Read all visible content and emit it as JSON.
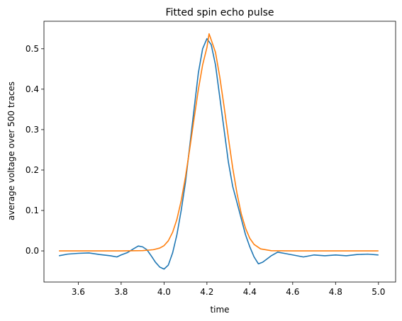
{
  "chart_data": {
    "type": "line",
    "title": "Fitted spin echo pulse",
    "xlabel": "time",
    "ylabel": "average voltage over 500 traces",
    "xlim": [
      3.44,
      5.08
    ],
    "ylim": [
      -0.077,
      0.568
    ],
    "xticks": [
      3.6,
      3.8,
      4.0,
      4.2,
      4.4,
      4.6,
      4.8,
      5.0
    ],
    "xtick_labels": [
      "3.6",
      "3.8",
      "4.0",
      "4.2",
      "4.4",
      "4.6",
      "4.8",
      "5.0"
    ],
    "yticks": [
      0.0,
      0.1,
      0.2,
      0.3,
      0.4,
      0.5
    ],
    "ytick_labels": [
      "0.0",
      "0.1",
      "0.2",
      "0.3",
      "0.4",
      "0.5"
    ],
    "grid": false,
    "legend": "none",
    "series": [
      {
        "color": "#1f77b4",
        "x": [
          3.51,
          3.55,
          3.6,
          3.65,
          3.7,
          3.75,
          3.78,
          3.8,
          3.83,
          3.86,
          3.88,
          3.9,
          3.92,
          3.94,
          3.96,
          3.98,
          4.0,
          4.02,
          4.04,
          4.06,
          4.08,
          4.1,
          4.12,
          4.14,
          4.16,
          4.18,
          4.2,
          4.22,
          4.24,
          4.26,
          4.28,
          4.3,
          4.32,
          4.34,
          4.36,
          4.38,
          4.4,
          4.42,
          4.44,
          4.46,
          4.48,
          4.5,
          4.53,
          4.56,
          4.6,
          4.65,
          4.7,
          4.75,
          4.8,
          4.85,
          4.9,
          4.95,
          5.0
        ],
        "y": [
          -0.012,
          -0.008,
          -0.006,
          -0.005,
          -0.009,
          -0.012,
          -0.015,
          -0.01,
          -0.004,
          0.006,
          0.012,
          0.01,
          0.003,
          -0.012,
          -0.028,
          -0.04,
          -0.045,
          -0.035,
          -0.005,
          0.04,
          0.1,
          0.17,
          0.26,
          0.35,
          0.44,
          0.5,
          0.525,
          0.51,
          0.46,
          0.38,
          0.3,
          0.22,
          0.16,
          0.12,
          0.08,
          0.04,
          0.01,
          -0.015,
          -0.032,
          -0.028,
          -0.02,
          -0.012,
          -0.003,
          -0.006,
          -0.01,
          -0.015,
          -0.01,
          -0.012,
          -0.01,
          -0.012,
          -0.009,
          -0.008,
          -0.01
        ]
      },
      {
        "color": "#ff7f0e",
        "x": [
          3.51,
          3.6,
          3.7,
          3.8,
          3.9,
          3.95,
          3.98,
          4.0,
          4.02,
          4.04,
          4.06,
          4.08,
          4.1,
          4.12,
          4.14,
          4.16,
          4.18,
          4.2,
          4.21,
          4.22,
          4.24,
          4.26,
          4.28,
          4.3,
          4.32,
          4.34,
          4.36,
          4.38,
          4.4,
          4.42,
          4.45,
          4.5,
          4.6,
          4.8,
          5.0
        ],
        "y": [
          0.0,
          0.0,
          0.0,
          0.0,
          0.0006,
          0.003,
          0.007,
          0.013,
          0.025,
          0.046,
          0.078,
          0.124,
          0.183,
          0.253,
          0.327,
          0.399,
          0.46,
          0.503,
          0.537,
          0.522,
          0.491,
          0.43,
          0.357,
          0.28,
          0.206,
          0.143,
          0.092,
          0.056,
          0.031,
          0.016,
          0.005,
          0.0004,
          0.0,
          0.0,
          0.0
        ]
      }
    ]
  }
}
